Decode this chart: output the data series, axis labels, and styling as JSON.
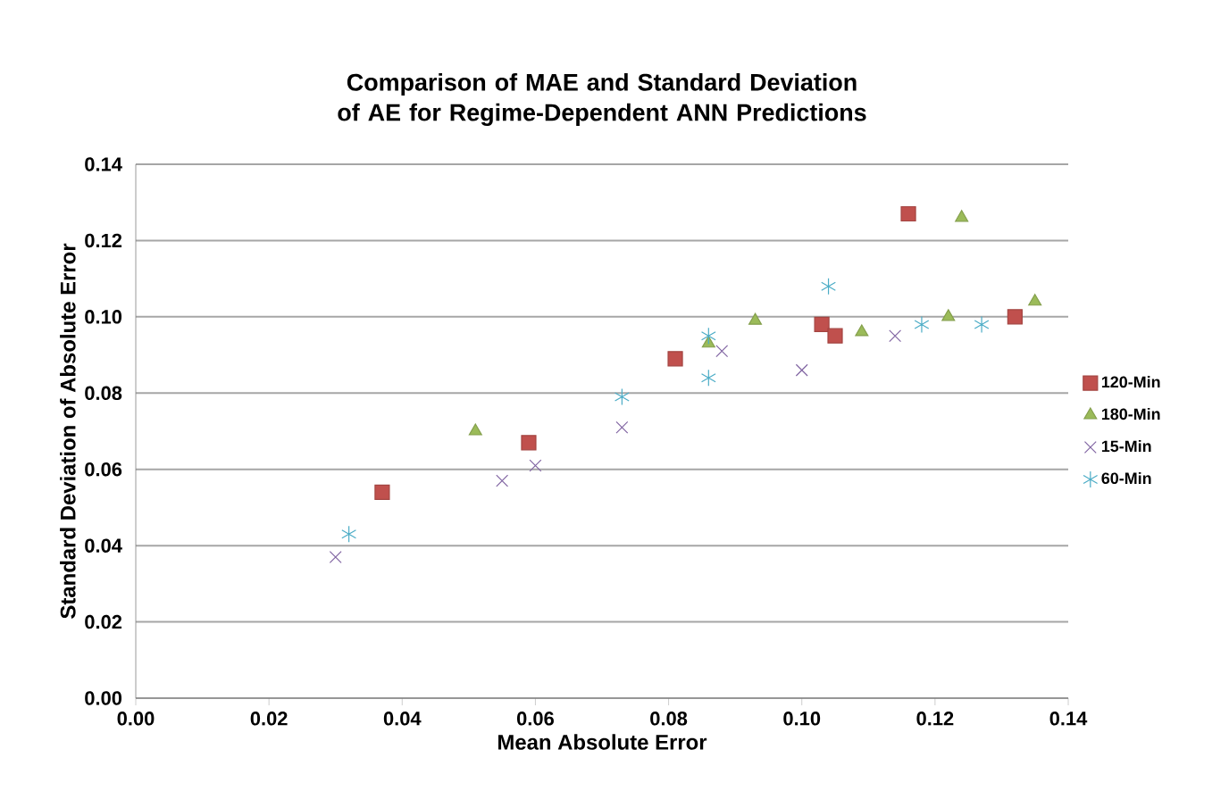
{
  "chart_data": {
    "type": "scatter",
    "title": "Comparison of MAE and Standard Deviation of AE for Regime-Dependent ANN Predictions",
    "xlabel": "Mean Absolute Error",
    "ylabel": "Standard Deviation of Absolute Error",
    "xlim": [
      0,
      0.14
    ],
    "ylim": [
      0,
      0.14
    ],
    "xticks": [
      {
        "value": 0,
        "label": "0.00"
      },
      {
        "value": 0.02,
        "label": "0.02"
      },
      {
        "value": 0.04,
        "label": "0.04"
      },
      {
        "value": 0.06,
        "label": "0.06"
      },
      {
        "value": 0.08,
        "label": "0.08"
      },
      {
        "value": 0.1,
        "label": "0.10"
      },
      {
        "value": 0.12,
        "label": "0.12"
      },
      {
        "value": 0.14,
        "label": "0.14"
      }
    ],
    "yticks": [
      {
        "value": 0,
        "label": "0.00"
      },
      {
        "value": 0.02,
        "label": "0.02"
      },
      {
        "value": 0.04,
        "label": "0.04"
      },
      {
        "value": 0.06,
        "label": "0.06"
      },
      {
        "value": 0.08,
        "label": "0.08"
      },
      {
        "value": 0.1,
        "label": "0.10"
      },
      {
        "value": 0.12,
        "label": "0.12"
      },
      {
        "value": 0.14,
        "label": "0.14"
      }
    ],
    "grid": "y",
    "legend": "right",
    "series": [
      {
        "name": "120-Min",
        "color": "#c0504d",
        "marker": "square",
        "x": [
          0.037,
          0.059,
          0.081,
          0.103,
          0.105,
          0.116,
          0.132
        ],
        "values": [
          0.054,
          0.067,
          0.089,
          0.098,
          0.095,
          0.127,
          0.1
        ]
      },
      {
        "name": "180-Min",
        "color": "#9bbb59",
        "marker": "triangle",
        "x": [
          0.051,
          0.086,
          0.093,
          0.109,
          0.122,
          0.124,
          0.135
        ],
        "values": [
          0.07,
          0.093,
          0.099,
          0.096,
          0.1,
          0.126,
          0.104
        ]
      },
      {
        "name": "15-Min",
        "color": "#8064a2",
        "marker": "cross",
        "x": [
          0.03,
          0.055,
          0.06,
          0.073,
          0.088,
          0.1,
          0.114
        ],
        "values": [
          0.037,
          0.057,
          0.061,
          0.071,
          0.091,
          0.086,
          0.095
        ]
      },
      {
        "name": "60-Min",
        "color": "#4bacc6",
        "x": [
          0.032,
          0.073,
          0.086,
          0.086,
          0.104,
          0.118,
          0.127
        ],
        "values": [
          0.043,
          0.079,
          0.095,
          0.084,
          0.108,
          0.098,
          0.098
        ]
      }
    ]
  }
}
